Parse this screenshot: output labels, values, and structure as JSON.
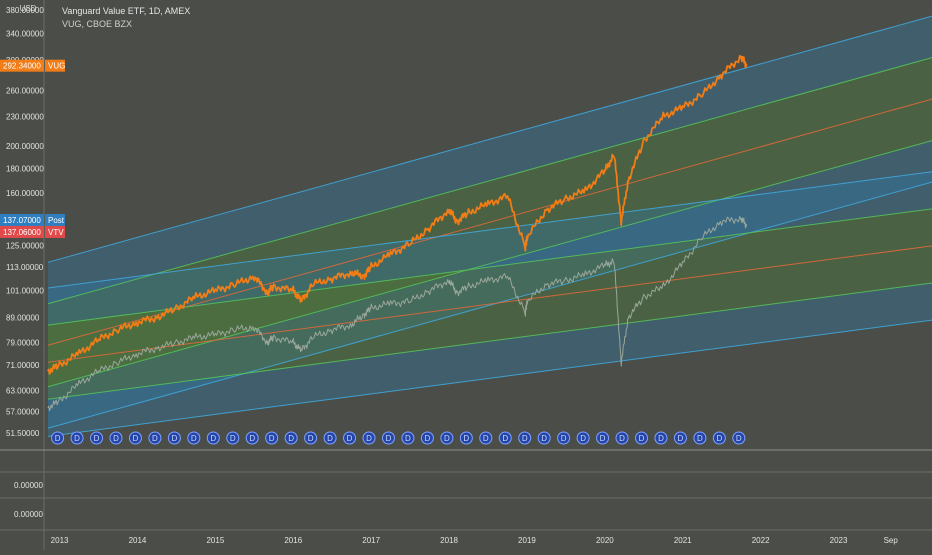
{
  "header": {
    "currency": "USD",
    "title": "Vanguard Value ETF, 1D, AMEX",
    "comparison": "VUG, CBOE BZX"
  },
  "colors": {
    "background": "#4b4e48",
    "vug_line": "#f07d17",
    "vtv_line": "#9aa79b",
    "channel_blue": "#3fa7dd",
    "channel_green": "#54c25a",
    "channel_orange": "#e0683b",
    "fill_blue": "#2d7fb8",
    "fill_green": "#4f8a3a",
    "badge_vug": "#f07d17",
    "badge_post": "#2f7fc0",
    "badge_vtv": "#e04a4a",
    "dividend": "#2545a8"
  },
  "dividend_marker_label": "D",
  "dividend_count": 36,
  "chart_data": [
    {
      "type": "line",
      "title": "Vanguard Value ETF, 1D, AMEX",
      "yscale": "log",
      "ylim": [
        48,
        395
      ],
      "y_tick_labels": [
        "51.50000",
        "57.00000",
        "63.00000",
        "71.00000",
        "79.00000",
        "89.00000",
        "101.00000",
        "113.00000",
        "125.00000",
        "137.00000",
        "160.00000",
        "180.00000",
        "200.00000",
        "230.00000",
        "260.00000",
        "300.00000",
        "340.00000",
        "380.00000"
      ],
      "y_ticks": [
        51.5,
        57,
        63,
        71,
        79,
        89,
        101,
        113,
        125,
        137,
        160,
        180,
        200,
        230,
        260,
        300,
        340,
        380
      ],
      "x_tick_labels": [
        "2013",
        "2014",
        "2015",
        "2016",
        "2017",
        "2018",
        "2019",
        "2020",
        "2021",
        "2022",
        "2023",
        "Sep"
      ],
      "x_ticks": [
        2013.0,
        2014.0,
        2015.0,
        2016.0,
        2017.0,
        2018.0,
        2019.0,
        2020.0,
        2021.0,
        2022.0,
        2023.0,
        2023.67
      ],
      "xlim": [
        2012.8,
        2024.2
      ],
      "grid": false,
      "series": [
        {
          "name": "VUG",
          "x": [
            2012.85,
            2013.0,
            2013.25,
            2013.5,
            2013.75,
            2014.0,
            2014.25,
            2014.5,
            2014.75,
            2015.0,
            2015.25,
            2015.5,
            2015.67,
            2015.75,
            2016.0,
            2016.1,
            2016.25,
            2016.5,
            2016.75,
            2016.9,
            2017.0,
            2017.25,
            2017.5,
            2017.75,
            2018.0,
            2018.1,
            2018.25,
            2018.5,
            2018.75,
            2018.98,
            2019.0,
            2019.25,
            2019.5,
            2019.75,
            2020.0,
            2020.12,
            2020.21,
            2020.3,
            2020.5,
            2020.75,
            2021.0,
            2021.25,
            2021.5,
            2021.75,
            2021.82
          ],
          "values": [
            69,
            71,
            75,
            80,
            84,
            87,
            89,
            93,
            98,
            101,
            104,
            108,
            100,
            103,
            101,
            96,
            104,
            107,
            110,
            108,
            113,
            120,
            126,
            136,
            148,
            140,
            146,
            152,
            158,
            124,
            130,
            148,
            156,
            162,
            178,
            192,
            140,
            170,
            205,
            230,
            240,
            255,
            280,
            305,
            292
          ]
        },
        {
          "name": "VTV",
          "x": [
            2012.85,
            2013.0,
            2013.25,
            2013.5,
            2013.75,
            2014.0,
            2014.25,
            2014.5,
            2014.75,
            2015.0,
            2015.25,
            2015.5,
            2015.67,
            2015.75,
            2016.0,
            2016.1,
            2016.25,
            2016.5,
            2016.75,
            2016.9,
            2017.0,
            2017.25,
            2017.5,
            2017.75,
            2018.0,
            2018.1,
            2018.25,
            2018.5,
            2018.75,
            2018.98,
            2019.0,
            2019.25,
            2019.5,
            2019.75,
            2020.0,
            2020.12,
            2020.21,
            2020.3,
            2020.5,
            2020.75,
            2021.0,
            2021.25,
            2021.5,
            2021.75,
            2021.82
          ],
          "values": [
            58,
            60,
            65,
            69,
            72,
            75,
            77,
            79,
            81,
            82,
            84,
            85,
            79,
            81,
            79,
            76,
            81,
            84,
            86,
            90,
            93,
            95,
            96,
            101,
            106,
            100,
            103,
            106,
            108,
            91,
            96,
            104,
            106,
            109,
            114,
            116,
            72,
            89,
            98,
            103,
            115,
            130,
            140,
            142,
            137
          ]
        }
      ],
      "current_values": {
        "VUG": "292.34000",
        "Post": "137.07000",
        "VTV": "137.06000"
      },
      "badge_labels": {
        "VUG": "VUG",
        "Post": "Post",
        "VTV": "VTV"
      }
    },
    {
      "type": "line",
      "title": "",
      "y_tick_labels": [
        "0.00000",
        "0.00000"
      ]
    }
  ]
}
